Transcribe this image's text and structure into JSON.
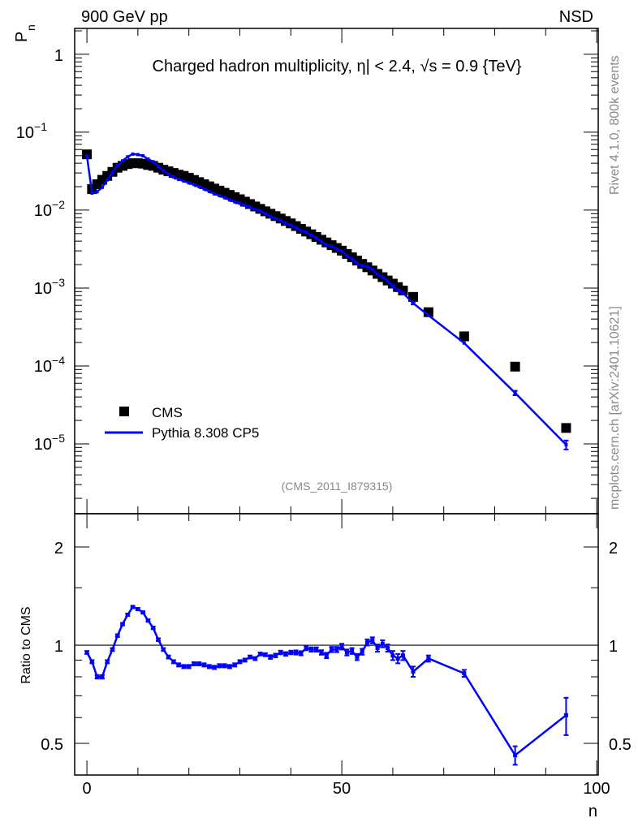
{
  "header": {
    "left": "900 GeV pp",
    "right": "NSD"
  },
  "side_text": {
    "rivet": "Rivet 4.1.0,  800k events",
    "mcplots": "mcplots.cern.ch [arXiv:2401.10621]"
  },
  "analysis_id": "(CMS_2011_I879315)",
  "colors": {
    "data": "#000000",
    "mc": "#0000ff",
    "gray": "#888888"
  },
  "chart_data": [
    {
      "type": "scatter",
      "title": "Charged hadron multiplicity, η| < 2.4, √s = 0.9 {TeV}",
      "xlabel": "n",
      "ylabel": "P",
      "ylabel_sub": "n",
      "xlim": [
        -2.4,
        100.3
      ],
      "ylim": [
        1.27e-06,
        2.15
      ],
      "yscale": "log",
      "yticks": [
        {
          "base": "1",
          "exp": ""
        },
        {
          "base": "10",
          "exp": "−1"
        },
        {
          "base": "10",
          "exp": "−2"
        },
        {
          "base": "10",
          "exp": "−3"
        },
        {
          "base": "10",
          "exp": "−4"
        },
        {
          "base": "10",
          "exp": "−5"
        }
      ],
      "legend": {
        "placement": "bottom-left",
        "entries": [
          "CMS",
          "Pythia 8.308 CP5"
        ]
      },
      "x": [
        0,
        1,
        2,
        3,
        4,
        5,
        6,
        7,
        8,
        9,
        10,
        11,
        12,
        13,
        14,
        15,
        16,
        17,
        18,
        19,
        20,
        21,
        22,
        23,
        24,
        25,
        26,
        27,
        28,
        29,
        30,
        31,
        32,
        33,
        34,
        35,
        36,
        37,
        38,
        39,
        40,
        41,
        42,
        43,
        44,
        45,
        46,
        47,
        48,
        49,
        50,
        51,
        52,
        53,
        54,
        55,
        56,
        57,
        58,
        59,
        60,
        61,
        62,
        64,
        67,
        74,
        84,
        94
      ],
      "series": [
        {
          "name": "CMS",
          "values": [
            0.052,
            0.0186,
            0.0215,
            0.0245,
            0.0275,
            0.031,
            0.035,
            0.037,
            0.039,
            0.04,
            0.04,
            0.0395,
            0.038,
            0.037,
            0.035,
            0.033,
            0.0315,
            0.03,
            0.0285,
            0.0275,
            0.026,
            0.0244,
            0.0229,
            0.0215,
            0.0202,
            0.0189,
            0.0178,
            0.0167,
            0.0157,
            0.0147,
            0.0138,
            0.01285,
            0.01197,
            0.01114,
            0.01038,
            0.00966,
            0.00899,
            0.00838,
            0.0078,
            0.00726,
            0.00676,
            0.00624,
            0.00575,
            0.00531,
            0.0049,
            0.00452,
            0.00417,
            0.00385,
            0.00355,
            0.00327,
            0.00302,
            0.00274,
            0.00248,
            0.00225,
            0.00204,
            0.00185,
            0.00168,
            0.00152,
            0.00138,
            0.00125,
            0.00114,
            0.00103,
            0.00093,
            0.00077,
            0.00049,
            0.00024,
            9.8e-05,
            1.6e-05
          ]
        },
        {
          "name": "Pythia 8.308 CP5",
          "ratio_to_cms": [
            0.95,
            0.89,
            0.8,
            0.8,
            0.89,
            0.97,
            1.07,
            1.16,
            1.24,
            1.31,
            1.29,
            1.26,
            1.19,
            1.13,
            1.04,
            0.97,
            0.92,
            0.89,
            0.87,
            0.86,
            0.86,
            0.877,
            0.877,
            0.87,
            0.86,
            0.855,
            0.865,
            0.865,
            0.86,
            0.87,
            0.89,
            0.9,
            0.92,
            0.91,
            0.94,
            0.935,
            0.92,
            0.93,
            0.95,
            0.94,
            0.95,
            0.95,
            0.945,
            0.98,
            0.97,
            0.97,
            0.95,
            0.93,
            0.97,
            0.97,
            0.99,
            0.95,
            0.96,
            0.92,
            0.955,
            1.02,
            1.035,
            0.98,
            1.01,
            0.98,
            0.93,
            0.91,
            0.93,
            0.83,
            0.91,
            0.82,
            0.46,
            0.61
          ]
        }
      ]
    },
    {
      "type": "line",
      "ylabel": "Ratio to CMS",
      "yscale": "log",
      "ylim": [
        0.4,
        2.53
      ],
      "reference_line": 1,
      "yticks": [
        "0.5",
        "1",
        "2"
      ],
      "xticks": [
        "0",
        "50",
        "100"
      ],
      "ratio_err": [
        0.01,
        0.01,
        0.01,
        0.01,
        0.01,
        0.01,
        0.01,
        0.01,
        0.01,
        0.01,
        0.01,
        0.01,
        0.01,
        0.01,
        0.01,
        0.01,
        0.01,
        0.01,
        0.01,
        0.01,
        0.01,
        0.01,
        0.01,
        0.01,
        0.01,
        0.01,
        0.01,
        0.01,
        0.01,
        0.01,
        0.01,
        0.01,
        0.01,
        0.01,
        0.01,
        0.01,
        0.012,
        0.012,
        0.012,
        0.012,
        0.012,
        0.014,
        0.014,
        0.015,
        0.015,
        0.015,
        0.015,
        0.018,
        0.018,
        0.018,
        0.02,
        0.02,
        0.02,
        0.02,
        0.02,
        0.022,
        0.022,
        0.025,
        0.025,
        0.025,
        0.03,
        0.03,
        0.03,
        0.03,
        0.02,
        0.02,
        0.03,
        0.08
      ]
    }
  ]
}
